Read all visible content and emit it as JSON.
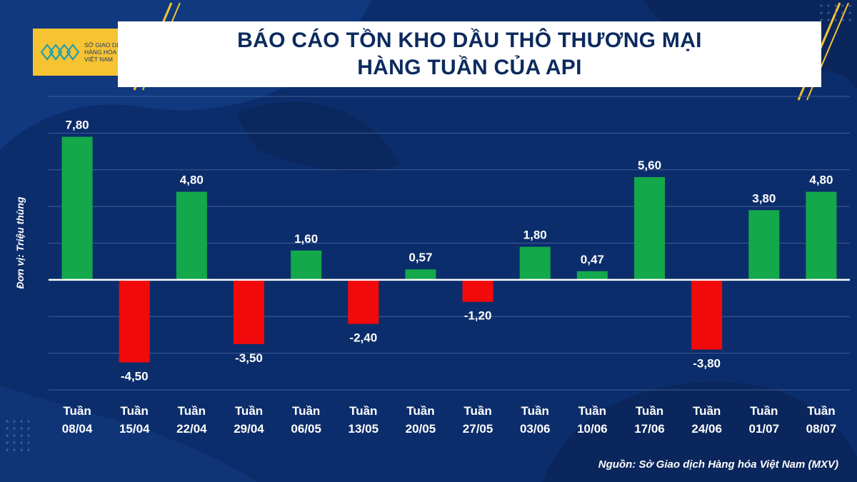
{
  "title_line1": "BÁO CÁO TỒN KHO DẦU THÔ THƯƠNG MẠI",
  "title_line2": "HÀNG TUẦN CỦA API",
  "logo": {
    "line1": "SỞ GIAO DỊCH",
    "line2": "HÀNG HÓA",
    "line3": "VIỆT NAM"
  },
  "ylabel": "Đơn vị: Triệu thùng",
  "source": "Nguồn: Sở Giao dịch Hàng hóa Việt Nam (MXV)",
  "colors": {
    "background": "#0c2d6b",
    "positive": "#13a84a",
    "negative": "#f20a0a",
    "accent": "#f6c332"
  },
  "chart_data": {
    "type": "bar",
    "categories": [
      [
        "Tuần",
        "08/04"
      ],
      [
        "Tuần",
        "15/04"
      ],
      [
        "Tuần",
        "22/04"
      ],
      [
        "Tuần",
        "29/04"
      ],
      [
        "Tuần",
        "06/05"
      ],
      [
        "Tuần",
        "13/05"
      ],
      [
        "Tuần",
        "20/05"
      ],
      [
        "Tuần",
        "27/05"
      ],
      [
        "Tuần",
        "03/06"
      ],
      [
        "Tuần",
        "10/06"
      ],
      [
        "Tuần",
        "17/06"
      ],
      [
        "Tuần",
        "24/06"
      ],
      [
        "Tuần",
        "01/07"
      ],
      [
        "Tuần",
        "08/07"
      ]
    ],
    "values": [
      7.8,
      -4.5,
      4.8,
      -3.5,
      1.6,
      -2.4,
      0.57,
      -1.2,
      1.8,
      0.47,
      5.6,
      -3.8,
      3.8,
      4.8
    ],
    "labels": [
      "7,80",
      "-4,50",
      "4,80",
      "-3,50",
      "1,60",
      "-2,40",
      "0,57",
      "-1,20",
      "1,80",
      "0,47",
      "5,60",
      "-3,80",
      "3,80",
      "4,80"
    ],
    "ylim": [
      -6,
      10
    ],
    "grid": true
  }
}
